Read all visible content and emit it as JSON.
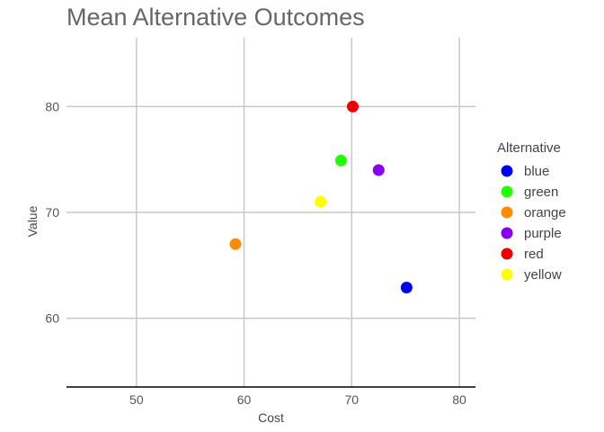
{
  "chart_data": {
    "type": "scatter",
    "title": "Mean Alternative Outcomes",
    "xlabel": "Cost",
    "ylabel": "Value",
    "xlim": [
      43.5,
      81.5
    ],
    "ylim": [
      53.5,
      86.5
    ],
    "xticks": [
      50,
      60,
      70,
      80
    ],
    "yticks": [
      60,
      70,
      80
    ],
    "grid": true,
    "legend": {
      "title": "Alternative",
      "placement": "right"
    },
    "series": [
      {
        "name": "blue",
        "color": "#0000ee",
        "x": 75.1,
        "y": 62.9
      },
      {
        "name": "green",
        "color": "#22ff00",
        "x": 69.0,
        "y": 74.9
      },
      {
        "name": "orange",
        "color": "#ff8c00",
        "x": 59.2,
        "y": 67.0
      },
      {
        "name": "purple",
        "color": "#8800ee",
        "x": 72.5,
        "y": 74.0
      },
      {
        "name": "red",
        "color": "#ee0000",
        "x": 70.1,
        "y": 80.0
      },
      {
        "name": "yellow",
        "color": "#ffff00",
        "x": 67.1,
        "y": 71.0
      }
    ]
  }
}
